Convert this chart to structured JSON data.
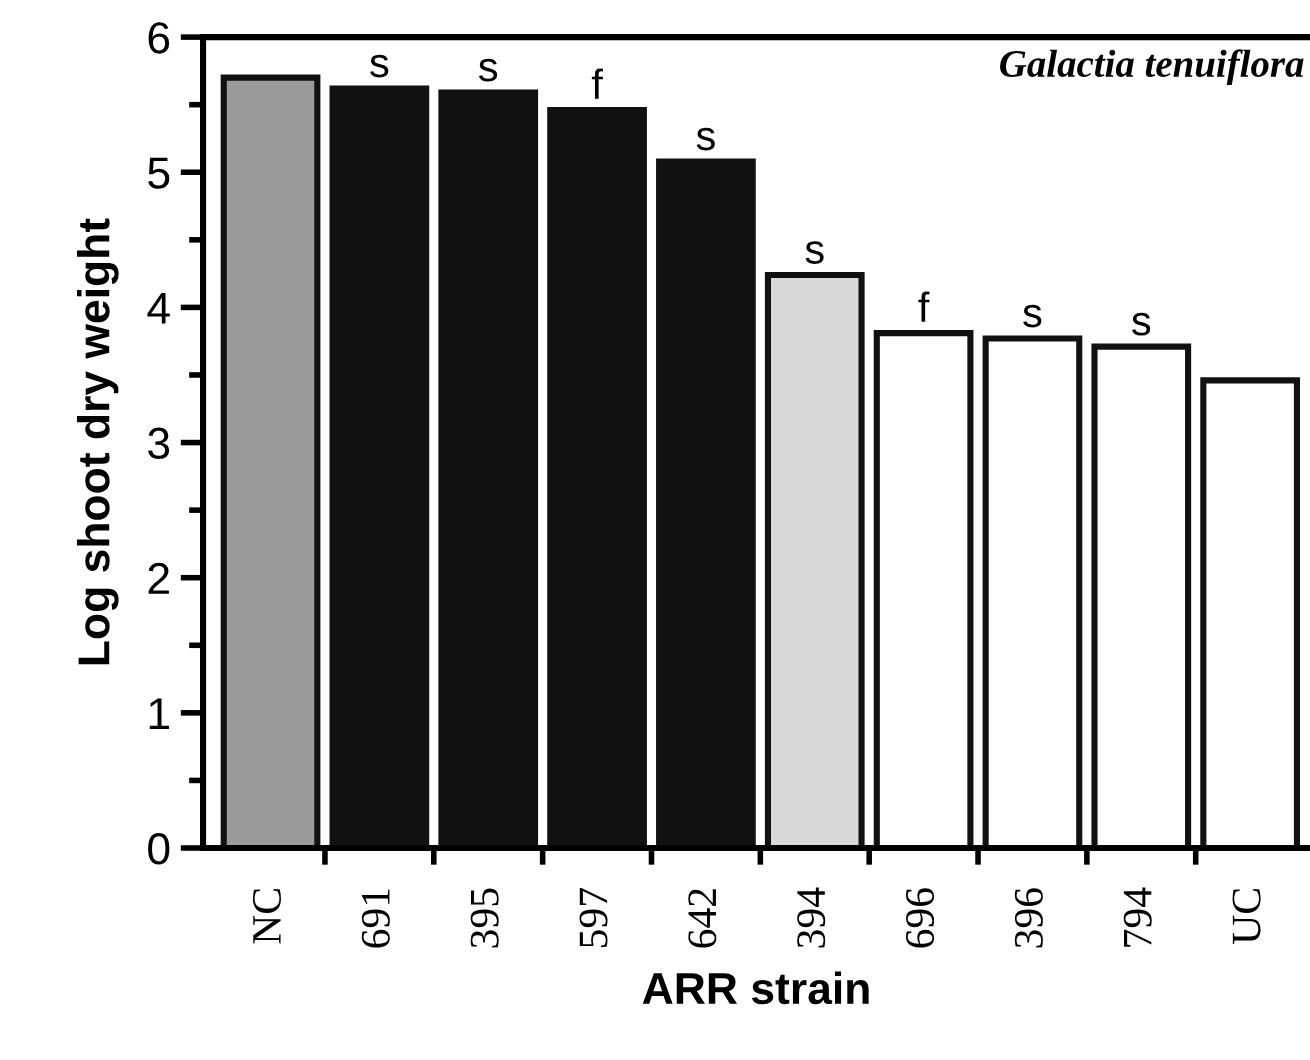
{
  "chart_data": {
    "type": "bar",
    "title": "Galactia tenuiflora",
    "xlabel": "ARR strain",
    "ylabel": "Log shoot dry weight",
    "categories": [
      "NC",
      "691",
      "395",
      "597",
      "642",
      "394",
      "696",
      "396",
      "794",
      "UC"
    ],
    "values": [
      5.7,
      5.62,
      5.59,
      5.46,
      5.08,
      4.24,
      3.81,
      3.77,
      3.71,
      3.46
    ],
    "colors": [
      "#9a9a9a",
      "#111111",
      "#111111",
      "#111111",
      "#111111",
      "#d8d8d8",
      "#ffffff",
      "#ffffff",
      "#ffffff",
      "#ffffff"
    ],
    "ylim": [
      0,
      6
    ],
    "yticks": [
      0,
      1,
      2,
      3,
      4,
      5,
      6
    ],
    "grid": false,
    "legend": false,
    "annotations": [
      {
        "text": "s",
        "x": "691",
        "y": 5.62
      },
      {
        "text": "s",
        "x": "395",
        "y": 5.59
      },
      {
        "text": "f",
        "x": "597",
        "y": 5.46
      },
      {
        "text": "s",
        "x": "642",
        "y": 5.08
      },
      {
        "text": "s",
        "x": "394",
        "y": 4.24
      },
      {
        "text": "f",
        "x": "696",
        "y": 3.81
      },
      {
        "text": "s",
        "x": "396",
        "y": 3.77
      },
      {
        "text": "s",
        "x": "794",
        "y": 3.71
      }
    ]
  }
}
